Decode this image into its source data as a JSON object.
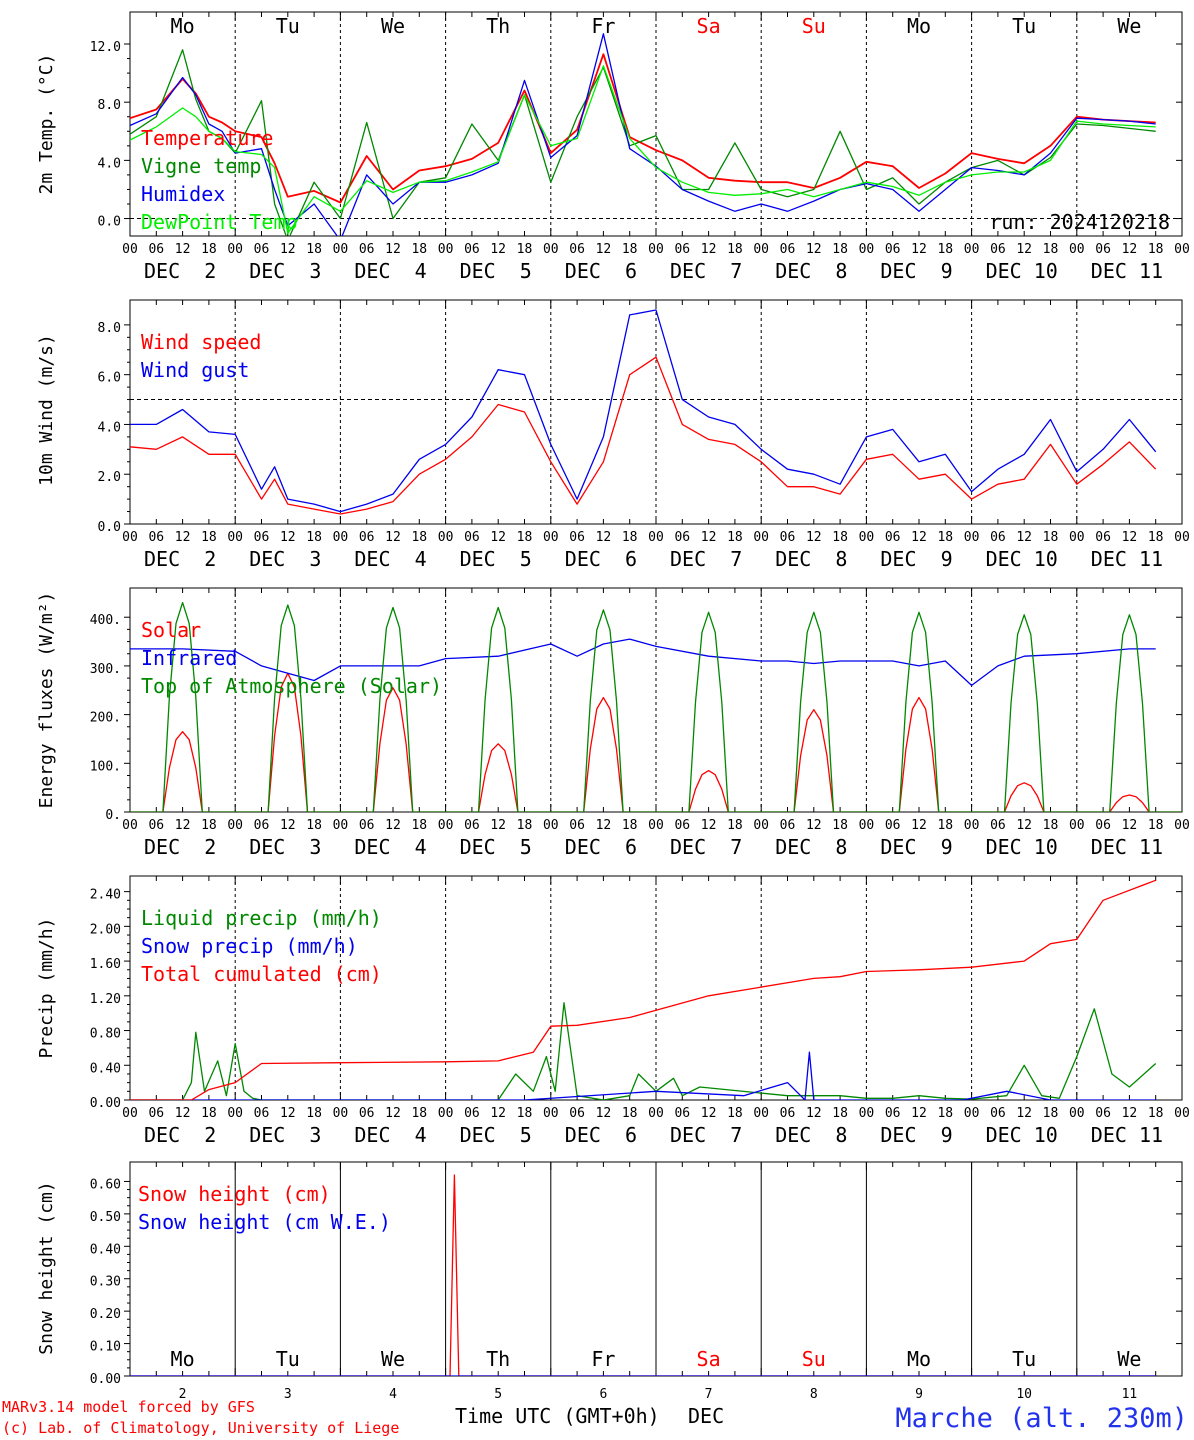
{
  "run_label": "run: 2024120218",
  "footer": {
    "credit_line1": "MARv3.14 model forced by GFS",
    "credit_line2": "(c) Lab. of Climatology, University of Liege",
    "xaxis_title": "Time UTC (GMT+0h)",
    "xaxis_unit": "DEC",
    "station": "Marche (alt. 230m)"
  },
  "colors": {
    "red": "#ff0000",
    "green": "#008800",
    "blue": "#0000ee",
    "lightgreen": "#00ee00"
  },
  "time_axis": {
    "hour_ticks": [
      "00",
      "06",
      "12",
      "18"
    ],
    "final_tick": "00",
    "days": [
      "DEC  2",
      "DEC  3",
      "DEC  4",
      "DEC  5",
      "DEC  6",
      "DEC  7",
      "DEC  8",
      "DEC  9",
      "DEC 10",
      "DEC 11"
    ],
    "day_numbers": [
      "2",
      "3",
      "4",
      "5",
      "6",
      "7",
      "8",
      "9",
      "10",
      "11"
    ],
    "weekdays": [
      "Mo",
      "Tu",
      "We",
      "Th",
      "Fr",
      "Sa",
      "Su",
      "Mo",
      "Tu",
      "We"
    ],
    "weekday_colors": [
      "#000000",
      "#000000",
      "#000000",
      "#000000",
      "#000000",
      "#ff0000",
      "#ff0000",
      "#000000",
      "#000000",
      "#000000"
    ]
  },
  "chart_data": [
    {
      "type": "line",
      "ylabel": "2m Temp. (°C)",
      "ylim": [
        -1.2,
        14.2
      ],
      "yticks": [
        0.0,
        4.0,
        8.0,
        12.0
      ],
      "ytick_labels": [
        "0.0",
        "4.0",
        "8.0",
        "12.0"
      ],
      "hline": 0.0,
      "x_hours_from_dec2_00utc": [
        0,
        6,
        12,
        15,
        18,
        21,
        24,
        30,
        33,
        36,
        42,
        48,
        54,
        60,
        66,
        72,
        78,
        84,
        90,
        96,
        102,
        108,
        114,
        120,
        126,
        132,
        138,
        144,
        150,
        156,
        162,
        168,
        174,
        180,
        186,
        192,
        198,
        204,
        210,
        216,
        222,
        228,
        234
      ],
      "series": [
        {
          "name": "Temperature",
          "color_key": "red",
          "values": [
            6.9,
            7.5,
            9.6,
            8.6,
            7.0,
            6.6,
            6.0,
            5.6,
            3.8,
            1.5,
            1.9,
            1.1,
            4.3,
            2.0,
            3.3,
            3.6,
            4.1,
            5.2,
            8.8,
            4.5,
            6.1,
            11.3,
            5.6,
            4.7,
            4.0,
            2.8,
            2.6,
            2.5,
            2.5,
            2.1,
            2.8,
            3.9,
            3.6,
            2.1,
            3.1,
            4.5,
            4.1,
            3.8,
            5.0,
            7.0,
            6.8,
            6.7,
            6.6
          ]
        },
        {
          "name": "Vigne temp",
          "color_key": "green",
          "values": [
            5.8,
            7.0,
            11.6,
            8.2,
            6.0,
            5.5,
            4.5,
            8.1,
            1.0,
            -1.5,
            2.5,
            0.0,
            6.6,
            0.0,
            2.5,
            2.8,
            6.5,
            4.0,
            8.5,
            2.5,
            7.0,
            10.4,
            5.0,
            5.7,
            2.0,
            2.0,
            5.2,
            2.0,
            1.5,
            2.0,
            6.0,
            2.0,
            2.8,
            1.0,
            2.5,
            3.5,
            4.0,
            3.0,
            4.2,
            6.5,
            6.4,
            6.2,
            6.0
          ]
        },
        {
          "name": "Humidex",
          "color_key": "blue",
          "values": [
            6.4,
            7.2,
            9.7,
            8.5,
            6.5,
            6.0,
            4.5,
            4.8,
            2.0,
            -0.5,
            1.0,
            -1.5,
            3.0,
            1.0,
            2.5,
            2.5,
            3.0,
            3.8,
            9.5,
            4.2,
            5.7,
            12.7,
            4.8,
            3.6,
            2.0,
            1.2,
            0.5,
            1.0,
            0.5,
            1.2,
            2.0,
            2.4,
            2.0,
            0.5,
            2.0,
            3.5,
            3.3,
            3.0,
            4.5,
            6.9,
            6.8,
            6.7,
            6.5
          ]
        },
        {
          "name": "DewPoint Temp",
          "color_key": "lightgreen",
          "values": [
            5.4,
            6.3,
            7.6,
            7.0,
            6.0,
            5.5,
            4.6,
            4.4,
            3.5,
            -1.0,
            1.5,
            0.5,
            2.6,
            1.8,
            2.5,
            2.6,
            3.2,
            3.9,
            8.5,
            5.0,
            5.5,
            10.5,
            5.5,
            3.5,
            2.5,
            1.8,
            1.6,
            1.7,
            2.0,
            1.5,
            2.0,
            2.5,
            2.2,
            1.6,
            2.5,
            3.0,
            3.2,
            3.2,
            4.0,
            6.7,
            6.5,
            6.4,
            6.3
          ]
        }
      ]
    },
    {
      "type": "line",
      "ylabel": "10m Wind (m/s)",
      "ylim": [
        0,
        9.0
      ],
      "yticks": [
        0.0,
        2.0,
        4.0,
        6.0,
        8.0
      ],
      "ytick_labels": [
        "0.0",
        "2.0",
        "4.0",
        "6.0",
        "8.0"
      ],
      "hline": 5.0,
      "x_hours_from_dec2_00utc": [
        0,
        6,
        12,
        18,
        24,
        30,
        33,
        36,
        42,
        48,
        54,
        60,
        66,
        72,
        78,
        84,
        90,
        96,
        102,
        108,
        114,
        120,
        126,
        132,
        138,
        144,
        150,
        156,
        162,
        168,
        174,
        180,
        186,
        192,
        198,
        204,
        210,
        216,
        222,
        228,
        234
      ],
      "series": [
        {
          "name": "Wind speed",
          "color_key": "red",
          "values": [
            3.1,
            3.0,
            3.5,
            2.8,
            2.8,
            1.0,
            1.8,
            0.8,
            0.6,
            0.4,
            0.6,
            0.9,
            2.0,
            2.6,
            3.5,
            4.8,
            4.5,
            2.5,
            0.8,
            2.5,
            6.0,
            6.7,
            4.0,
            3.4,
            3.2,
            2.5,
            1.5,
            1.5,
            1.2,
            2.6,
            2.8,
            1.8,
            2.0,
            1.0,
            1.6,
            1.8,
            3.2,
            1.6,
            2.4,
            3.3,
            2.2
          ]
        },
        {
          "name": "Wind gust",
          "color_key": "blue",
          "values": [
            4.0,
            4.0,
            4.6,
            3.7,
            3.6,
            1.4,
            2.3,
            1.0,
            0.8,
            0.5,
            0.8,
            1.2,
            2.6,
            3.2,
            4.3,
            6.2,
            6.0,
            3.2,
            1.0,
            3.5,
            8.4,
            8.6,
            5.0,
            4.3,
            4.0,
            3.0,
            2.2,
            2.0,
            1.6,
            3.5,
            3.8,
            2.5,
            2.8,
            1.3,
            2.2,
            2.8,
            4.2,
            2.1,
            3.0,
            4.2,
            2.9
          ]
        }
      ]
    },
    {
      "type": "line",
      "ylabel": "Energy fluxes (W/m²)",
      "ylim": [
        0,
        460
      ],
      "yticks": [
        0,
        100,
        200,
        300,
        400
      ],
      "ytick_labels": [
        "0.",
        "100.",
        "200.",
        "300.",
        "400."
      ],
      "series": [
        {
          "name": "Solar",
          "color_key": "red",
          "daily_peak_w_m2": [
            165,
            285,
            255,
            140,
            235,
            85,
            210,
            235,
            60,
            35
          ]
        },
        {
          "name": "Infrared",
          "color_key": "blue",
          "x_hours_from_dec2_00utc": [
            0,
            12,
            24,
            30,
            36,
            42,
            48,
            54,
            60,
            66,
            72,
            84,
            96,
            102,
            108,
            114,
            120,
            132,
            144,
            150,
            156,
            162,
            168,
            174,
            180,
            186,
            192,
            198,
            204,
            216,
            228,
            234
          ],
          "values": [
            335,
            335,
            330,
            300,
            285,
            270,
            300,
            300,
            300,
            300,
            315,
            320,
            345,
            320,
            345,
            355,
            340,
            320,
            310,
            310,
            305,
            310,
            310,
            310,
            300,
            310,
            260,
            300,
            320,
            325,
            335,
            335
          ]
        },
        {
          "name": "Top of Atmosphere (Solar)",
          "color_key": "green",
          "daily_peak_w_m2": [
            430,
            425,
            420,
            420,
            415,
            410,
            410,
            410,
            405,
            405
          ]
        }
      ]
    },
    {
      "type": "line",
      "ylabel": "Precip (mm/h)",
      "ylim": [
        0,
        2.58
      ],
      "yticks": [
        0.0,
        0.4,
        0.8,
        1.2,
        1.6,
        2.0,
        2.4
      ],
      "ytick_labels": [
        "0.00",
        "0.40",
        "0.80",
        "1.20",
        "1.60",
        "2.00",
        "2.40"
      ],
      "series": [
        {
          "name": "Liquid precip (mm/h)",
          "color_key": "green",
          "x_hours_from_dec2_00utc": [
            0,
            12,
            14,
            15,
            17,
            20,
            22,
            24,
            26,
            28,
            30,
            60,
            84,
            88,
            92,
            95,
            97,
            99,
            102,
            108,
            114,
            116,
            120,
            124,
            126,
            130,
            144,
            150,
            156,
            162,
            168,
            174,
            180,
            186,
            192,
            200,
            204,
            208,
            212,
            216,
            220,
            224,
            228,
            234
          ],
          "values": [
            0,
            0,
            0.2,
            0.78,
            0.1,
            0.45,
            0.05,
            0.65,
            0.1,
            0.02,
            0,
            0,
            0,
            0.3,
            0.1,
            0.5,
            0.1,
            1.12,
            0.05,
            0,
            0.05,
            0.3,
            0.1,
            0.25,
            0.05,
            0.15,
            0.08,
            0.05,
            0.05,
            0.05,
            0.02,
            0.02,
            0.05,
            0.02,
            0.01,
            0.05,
            0.4,
            0.05,
            0.02,
            0.5,
            1.05,
            0.3,
            0.15,
            0.42
          ]
        },
        {
          "name": "Snow precip (mm/h)",
          "color_key": "blue",
          "x_hours_from_dec2_00utc": [
            0,
            30,
            60,
            90,
            120,
            140,
            150,
            154,
            155,
            156,
            160,
            190,
            200,
            210,
            220,
            234
          ],
          "values": [
            0,
            0,
            0,
            0,
            0.1,
            0.05,
            0.2,
            0,
            0.55,
            0,
            0,
            0,
            0.1,
            0,
            0,
            0
          ]
        },
        {
          "name": "Total cumulated (cm)",
          "color_key": "red",
          "x_hours_from_dec2_00utc": [
            0,
            14,
            18,
            24,
            30,
            48,
            72,
            84,
            92,
            96,
            102,
            114,
            132,
            144,
            156,
            162,
            168,
            180,
            192,
            204,
            210,
            216,
            222,
            234
          ],
          "values": [
            0,
            0,
            0.12,
            0.2,
            0.42,
            0.43,
            0.44,
            0.45,
            0.55,
            0.85,
            0.86,
            0.95,
            1.2,
            1.3,
            1.4,
            1.42,
            1.48,
            1.5,
            1.53,
            1.6,
            1.8,
            1.85,
            2.3,
            2.53
          ]
        }
      ]
    },
    {
      "type": "line",
      "ylabel": "Snow height (cm)",
      "ylim": [
        0,
        0.66
      ],
      "yticks": [
        0.0,
        0.1,
        0.2,
        0.3,
        0.4,
        0.5,
        0.6
      ],
      "ytick_labels": [
        "0.00",
        "0.10",
        "0.20",
        "0.30",
        "0.40",
        "0.50",
        "0.60"
      ],
      "series": [
        {
          "name": "Snow height (cm)",
          "color_key": "red",
          "x_hours_from_dec2_00utc": [
            0,
            73,
            74,
            75,
            234
          ],
          "values": [
            0,
            0,
            0.62,
            0,
            0
          ]
        },
        {
          "name": "Snow height (cm W.E.)",
          "color_key": "blue",
          "x_hours_from_dec2_00utc": [
            0,
            234
          ],
          "values": [
            0,
            0
          ]
        }
      ]
    }
  ]
}
